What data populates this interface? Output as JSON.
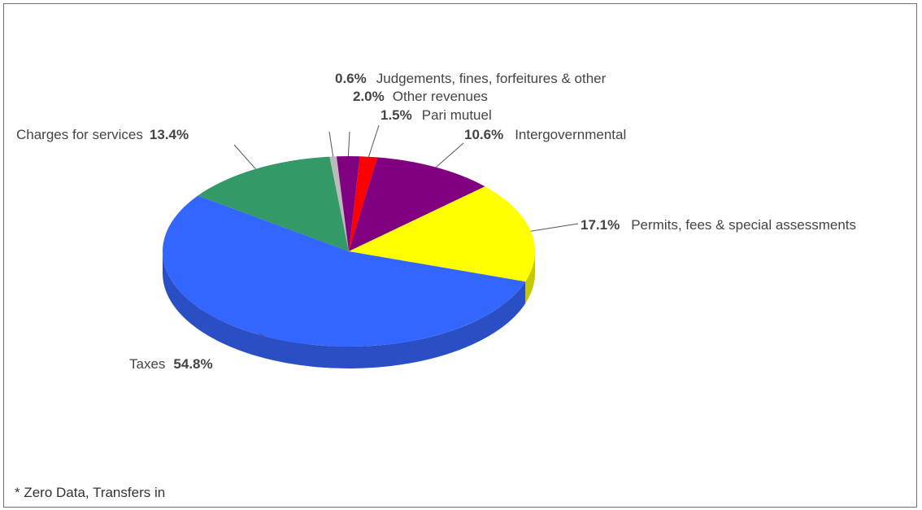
{
  "chart_data": {
    "type": "pie",
    "slices": [
      {
        "label": "Taxes",
        "value": 54.8,
        "display": "54.8%",
        "color": "#3366ff",
        "side": "#2a4fc4"
      },
      {
        "label": "Charges for services",
        "value": 13.4,
        "display": "13.4%",
        "color": "#339966",
        "side": "#267a4f"
      },
      {
        "label": "Judgements, fines, forfeitures & other",
        "value": 0.6,
        "display": "0.6%",
        "color": "#bbbbbb",
        "side": "#999999"
      },
      {
        "label": "Other revenues",
        "value": 2.0,
        "display": "2.0%",
        "color": "#800080",
        "side": "#5e005e"
      },
      {
        "label": "Pari mutuel",
        "value": 1.5,
        "display": "1.5%",
        "color": "#ff0000",
        "side": "#c40000"
      },
      {
        "label": "Intergovernmental",
        "value": 10.6,
        "display": "10.6%",
        "color": "#800080",
        "side": "#5e005e"
      },
      {
        "label": "Permits, fees & special assessments",
        "value": 17.1,
        "display": "17.1%",
        "color": "#ffff00",
        "side": "#c8c800"
      }
    ],
    "footnote": "* Zero Data, Transfers in"
  }
}
